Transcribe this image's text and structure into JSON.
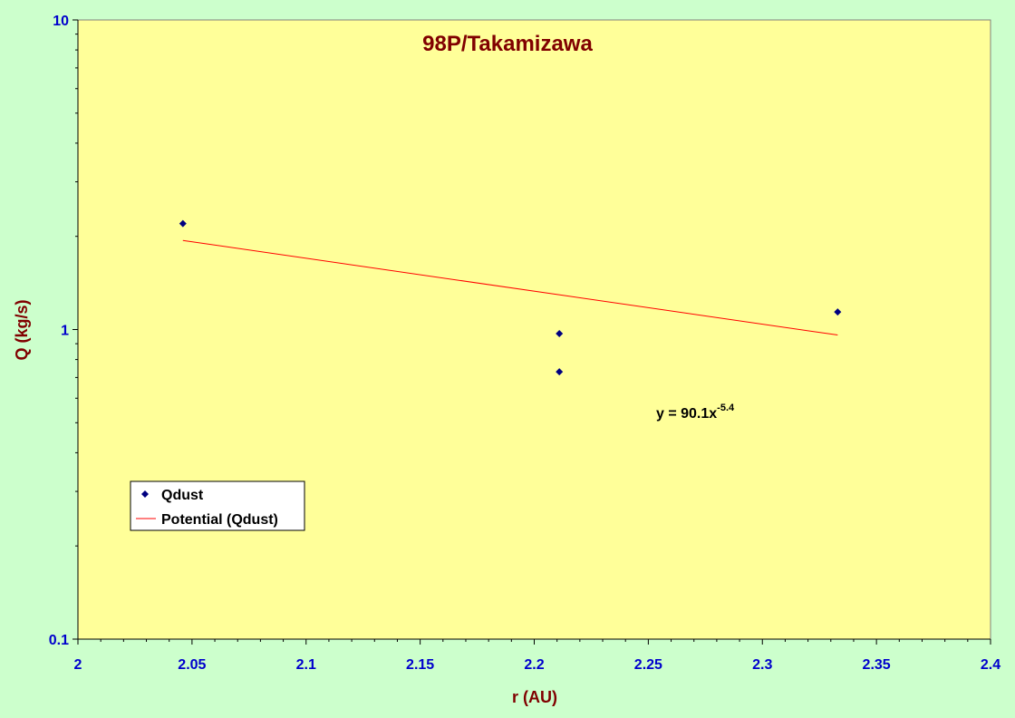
{
  "chart_data": {
    "type": "scatter",
    "title": "98P/Takamizawa",
    "xlabel": "r (AU)",
    "ylabel": "Q (kg/s)",
    "xlim": [
      2,
      2.4
    ],
    "ylim": [
      0.1,
      10
    ],
    "yscale": "log",
    "x_ticks": [
      "2",
      "2.05",
      "2.1",
      "2.15",
      "2.2",
      "2.25",
      "2.3",
      "2.35",
      "2.4"
    ],
    "y_ticks": [
      "0.1",
      "1",
      "10"
    ],
    "grid": false,
    "legend_position": "bottom-left",
    "series": [
      {
        "name": "Qdust",
        "marker": "diamond",
        "color": "#000080",
        "points": [
          {
            "x": 2.046,
            "y": 2.2
          },
          {
            "x": 2.211,
            "y": 0.97
          },
          {
            "x": 2.211,
            "y": 0.73
          },
          {
            "x": 2.333,
            "y": 1.14
          }
        ]
      },
      {
        "name": "Potential (Qdust)",
        "line": true,
        "color": "#ff0000",
        "points": [
          {
            "x": 2.046,
            "y": 1.94
          },
          {
            "x": 2.333,
            "y": 0.96
          }
        ]
      }
    ],
    "annotation": {
      "text": "y = 90.1x",
      "superscript": "-5.4"
    },
    "colors": {
      "background": "#ccffcc",
      "plot_area": "#ffff99",
      "tick_labels": "#0000cc",
      "titles": "#800000"
    }
  }
}
